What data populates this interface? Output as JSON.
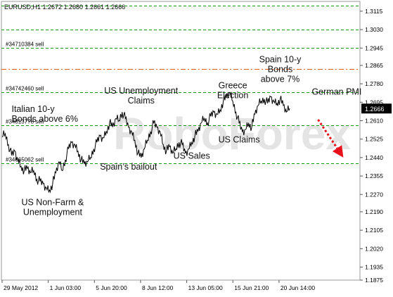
{
  "window_title": "EURUSD,H1  1.2672 1.2680 1.2661 1.2666",
  "watermark": "RoboForex",
  "chart_data": {
    "type": "line",
    "symbol": "EURUSD",
    "timeframe": "H1",
    "ohlc": {
      "open": 1.2672,
      "high": 1.268,
      "low": 1.2661,
      "close": 1.2666
    },
    "current_price_label": "1.2666",
    "ylim": [
      1.1875,
      1.316
    ],
    "y_ticks": [
      "1.3115",
      "1.3030",
      "1.2945",
      "1.2865",
      "1.2780",
      "1.2695",
      "1.2610",
      "1.2525",
      "1.2440",
      "1.2355",
      "1.2270",
      "1.2190",
      "1.2105",
      "1.2020",
      "1.1935",
      "1.1875"
    ],
    "x_tick_labels": [
      "29 May 2012",
      "1 Jun 03:00",
      "5 Jun 20:00",
      "8 Jun 12:00",
      "13 Jun 05:00",
      "15 Jun 21:00",
      "20 Jun 14:00"
    ],
    "series": [
      {
        "values": [
          1.2535,
          1.255,
          1.25,
          1.245,
          1.247,
          1.243,
          1.24,
          1.238,
          1.239,
          1.237,
          1.238,
          1.234,
          1.233,
          1.232,
          1.23,
          1.229,
          1.232,
          1.237,
          1.242,
          1.238,
          1.243,
          1.248,
          1.251,
          1.25,
          1.247,
          1.243,
          1.241,
          1.242,
          1.244,
          1.248,
          1.251,
          1.254,
          1.253,
          1.256,
          1.26,
          1.258,
          1.262,
          1.261,
          1.265,
          1.262,
          1.258,
          1.256,
          1.252,
          1.246,
          1.244,
          1.248,
          1.252,
          1.256,
          1.26,
          1.258,
          1.256,
          1.25,
          1.247,
          1.249,
          1.246,
          1.248,
          1.251,
          1.25,
          1.246,
          1.248,
          1.251,
          1.254,
          1.256,
          1.26,
          1.262,
          1.26,
          1.263,
          1.265,
          1.264,
          1.266,
          1.27,
          1.272,
          1.274,
          1.27,
          1.265,
          1.26,
          1.256,
          1.257,
          1.26,
          1.258,
          1.264,
          1.268,
          1.27,
          1.271,
          1.269,
          1.272,
          1.27,
          1.269,
          1.271,
          1.268,
          1.265,
          1.2666
        ]
      }
    ],
    "horizontal_levels": [
      {
        "label": "",
        "value": 1.314,
        "color": "#009900",
        "style": "dashed"
      },
      {
        "label": "",
        "value": 1.303,
        "color": "#009900",
        "style": "dashed"
      },
      {
        "label": "#34710384 sell",
        "value": 1.2945,
        "color": "#009900",
        "style": "dashed"
      },
      {
        "label": "",
        "value": 1.285,
        "color": "#e8600a",
        "style": "dashdot"
      },
      {
        "label": "#34742460 sell",
        "value": 1.274,
        "color": "#009900",
        "style": "dashed"
      },
      {
        "label": "#34813778 sell",
        "value": 1.259,
        "color": "#009900",
        "style": "dashed"
      },
      {
        "label": "#34665062 sell",
        "value": 1.2415,
        "color": "#009900",
        "style": "dashed"
      }
    ],
    "annotations": [
      {
        "text": "Italian 10-y\nBonds above 6%",
        "x_index": 3,
        "value": 1.265,
        "align": "start"
      },
      {
        "text": "US Unemployment\nClaims",
        "x_index": 44,
        "value": 1.2735,
        "align": "middle"
      },
      {
        "text": "Greece\nElection",
        "x_index": 73,
        "value": 1.276,
        "align": "middle"
      },
      {
        "text": "Spain 10-y\nBonds\nabove 7%",
        "x_index": 88,
        "value": 1.288,
        "align": "middle"
      },
      {
        "text": "German PMI",
        "x_index": 98,
        "value": 1.273,
        "align": "start"
      },
      {
        "text": "US Claims",
        "x_index": 75,
        "value": 1.251,
        "align": "middle"
      },
      {
        "text": "US Sales",
        "x_index": 60,
        "value": 1.2435,
        "align": "middle"
      },
      {
        "text": "Spain’s bailout",
        "x_index": 40,
        "value": 1.2385,
        "align": "middle"
      },
      {
        "text": "US Non-Farm &\nUnemployment",
        "x_index": 16,
        "value": 1.222,
        "align": "middle"
      }
    ],
    "forecast_arrow": {
      "from_index": 100,
      "from_value": 1.2615,
      "to_index": 108,
      "to_value": 1.244,
      "color": "#e8101a"
    },
    "grid": false,
    "line_color": "#000000"
  }
}
